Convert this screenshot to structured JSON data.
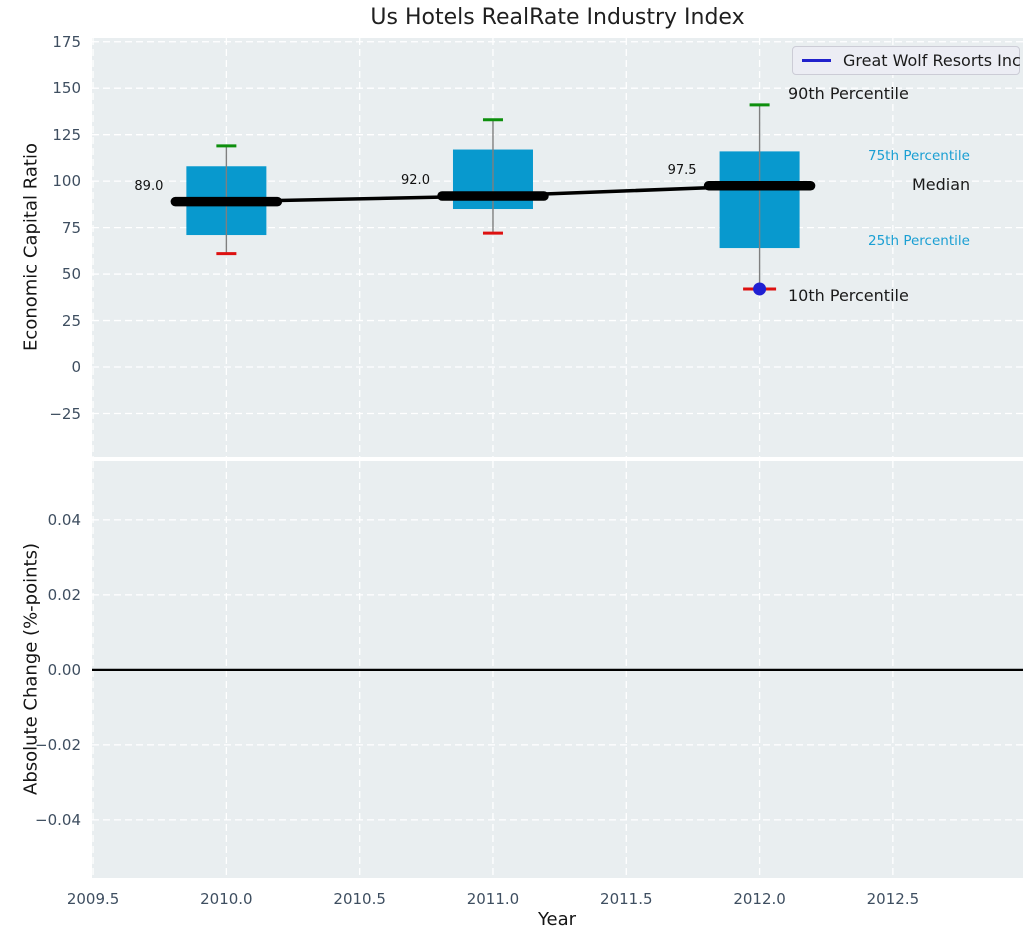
{
  "title": "Us Hotels RealRate Industry Index",
  "legend": {
    "label": "Great Wolf Resorts Inc"
  },
  "annotations": {
    "p90": "90th Percentile",
    "p75": "75th Percentile",
    "median": "Median",
    "p25": "25th Percentile",
    "p10": "10th Percentile"
  },
  "colors": {
    "box_fill": "#0899ce",
    "median_line": "#000000",
    "whisker": "#7f7f7f",
    "cap_high": "#0d8f0d",
    "cap_low": "#dd1010",
    "company_marker": "#2020d2",
    "company_dash": "#dd1010",
    "percentile_label": "#1a9fd3",
    "tick_label": "#3e4e60",
    "plot_bg": "#e9eef0",
    "grid": "#ffffff",
    "zero_line": "#000000",
    "legend_line": "#2121cc"
  },
  "chart_data": {
    "type": "box",
    "title": "Us Hotels RealRate Industry Index",
    "xlabel": "Year",
    "grid": true,
    "legend": {
      "position": "upper right",
      "entries": [
        {
          "label": "Great Wolf Resorts Inc",
          "color": "#2121cc"
        }
      ]
    },
    "x": {
      "lim": [
        2009.496,
        2012.988
      ],
      "ticks": [
        {
          "v": 2009.5,
          "label": "2009.5"
        },
        {
          "v": 2010.0,
          "label": "2010.0"
        },
        {
          "v": 2010.5,
          "label": "2010.5"
        },
        {
          "v": 2011.0,
          "label": "2011.0"
        },
        {
          "v": 2011.5,
          "label": "2011.5"
        },
        {
          "v": 2012.0,
          "label": "2012.0"
        },
        {
          "v": 2012.5,
          "label": "2012.5"
        }
      ]
    },
    "top_panel": {
      "ylabel": "Economic Capital Ratio",
      "ylim": [
        -48.4,
        177
      ],
      "yticks": [
        {
          "v": 175,
          "label": "175"
        },
        {
          "v": 150,
          "label": "150"
        },
        {
          "v": 125,
          "label": "125"
        },
        {
          "v": 100,
          "label": "100"
        },
        {
          "v": 75,
          "label": "75"
        },
        {
          "v": 50,
          "label": "50"
        },
        {
          "v": 25,
          "label": "25"
        },
        {
          "v": 0,
          "label": "0"
        },
        {
          "v": -25,
          "label": "−25"
        }
      ],
      "boxes": [
        {
          "year": 2010,
          "p10": 61,
          "p25": 71,
          "median": 89.0,
          "p75": 108,
          "p90": 119,
          "median_label": "89.0"
        },
        {
          "year": 2011,
          "p10": 72,
          "p25": 85,
          "median": 92.0,
          "p75": 117,
          "p90": 133,
          "median_label": "92.0"
        },
        {
          "year": 2012,
          "p10": 42,
          "p25": 64,
          "median": 97.5,
          "p75": 116,
          "p90": 141,
          "median_label": "97.5"
        }
      ],
      "median_trend": [
        {
          "year": 2010,
          "value": 89.0
        },
        {
          "year": 2011,
          "value": 92.0
        },
        {
          "year": 2012,
          "value": 97.5
        }
      ],
      "company_points": [
        {
          "name": "Great Wolf Resorts Inc",
          "year": 2012,
          "value": 42
        }
      ]
    },
    "bottom_panel": {
      "ylabel": "Absolute Change (%-points)",
      "ylim": [
        -0.0555,
        0.0557
      ],
      "zero_line": 0,
      "yticks": [
        {
          "v": 0.04,
          "label": "0.04"
        },
        {
          "v": 0.02,
          "label": "0.02"
        },
        {
          "v": 0.0,
          "label": "0.00"
        },
        {
          "v": -0.02,
          "label": "−0.02"
        },
        {
          "v": -0.04,
          "label": "−0.04"
        }
      ]
    }
  }
}
